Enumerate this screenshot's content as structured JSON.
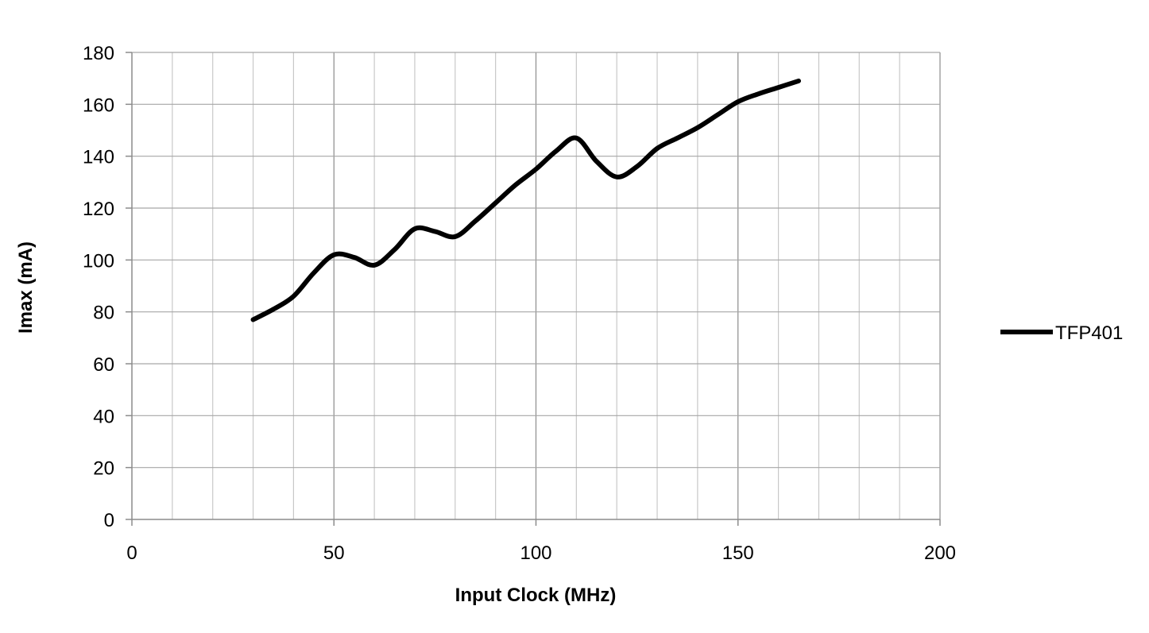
{
  "chart_data": {
    "type": "line",
    "title": "",
    "xlabel": "Input Clock (MHz)",
    "ylabel": "Imax (mA)",
    "xlim": [
      0,
      200
    ],
    "ylim": [
      0,
      180
    ],
    "x_major_ticks": [
      0,
      50,
      100,
      150,
      200
    ],
    "x_minor_step": 10,
    "y_ticks": [
      0,
      20,
      40,
      60,
      80,
      100,
      120,
      140,
      160,
      180
    ],
    "grid": true,
    "smooth": true,
    "legend_position": "right",
    "series": [
      {
        "name": "TFP401",
        "color": "#000000",
        "x": [
          30,
          35,
          40,
          45,
          50,
          55,
          60,
          65,
          70,
          75,
          80,
          85,
          90,
          95,
          100,
          105,
          110,
          115,
          120,
          125,
          130,
          135,
          140,
          145,
          150,
          155,
          160,
          165
        ],
        "y": [
          77,
          81,
          86,
          95,
          102,
          101,
          98,
          104,
          112,
          111,
          109,
          115,
          122,
          129,
          135,
          142,
          147,
          138,
          132,
          136,
          143,
          147,
          151,
          156,
          161,
          164,
          166.5,
          169
        ]
      }
    ]
  }
}
